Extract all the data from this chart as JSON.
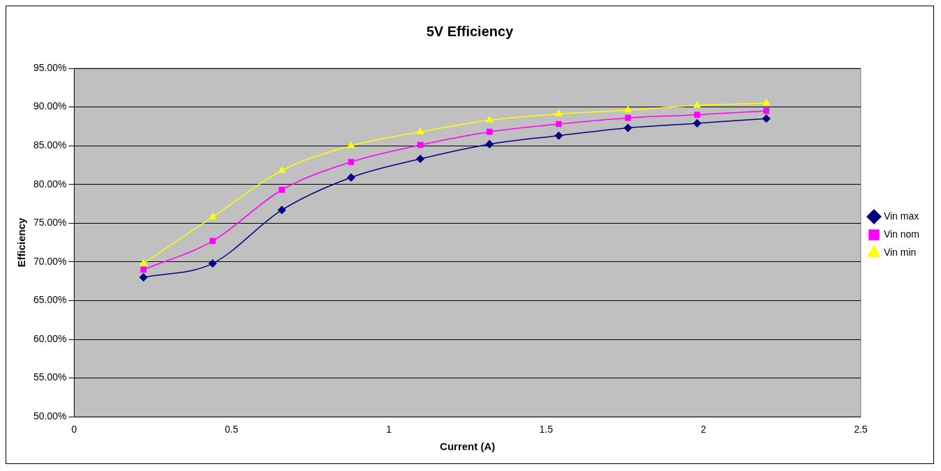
{
  "chart_data": {
    "type": "line",
    "title": "5V Efficiency",
    "xlabel": "Current (A)",
    "ylabel": "Efficiency",
    "x": [
      0.22,
      0.44,
      0.66,
      0.88,
      1.1,
      1.32,
      1.54,
      1.76,
      1.98,
      2.2
    ],
    "xlim": [
      0,
      2.5
    ],
    "xticks": [
      0,
      0.5,
      1,
      1.5,
      2,
      2.5
    ],
    "ylim": [
      50,
      95
    ],
    "yticks": [
      {
        "value": 50,
        "label": "50.00%"
      },
      {
        "value": 55,
        "label": "55.00%"
      },
      {
        "value": 60,
        "label": "60.00%"
      },
      {
        "value": 65,
        "label": "65.00%"
      },
      {
        "value": 70,
        "label": "70.00%"
      },
      {
        "value": 75,
        "label": "75.00%"
      },
      {
        "value": 80,
        "label": "80.00%"
      },
      {
        "value": 85,
        "label": "85.00%"
      },
      {
        "value": 90,
        "label": "90.00%"
      },
      {
        "value": 95,
        "label": "95.00%"
      }
    ],
    "grid": "y",
    "legend": "right",
    "series": [
      {
        "name": "Vin max",
        "color": "#000080",
        "marker": "diamond",
        "values": [
          68.0,
          69.8,
          76.7,
          80.9,
          83.3,
          85.2,
          86.3,
          87.3,
          87.9,
          88.5
        ]
      },
      {
        "name": "Vin nom",
        "color": "#ff00ff",
        "marker": "square",
        "values": [
          69.0,
          72.7,
          79.3,
          82.9,
          85.1,
          86.8,
          87.8,
          88.6,
          89.0,
          89.5
        ]
      },
      {
        "name": "Vin min",
        "color": "#ffff00",
        "marker": "triangle",
        "values": [
          69.8,
          75.8,
          81.8,
          85.0,
          86.8,
          88.3,
          89.1,
          89.6,
          90.2,
          90.5
        ]
      }
    ]
  }
}
